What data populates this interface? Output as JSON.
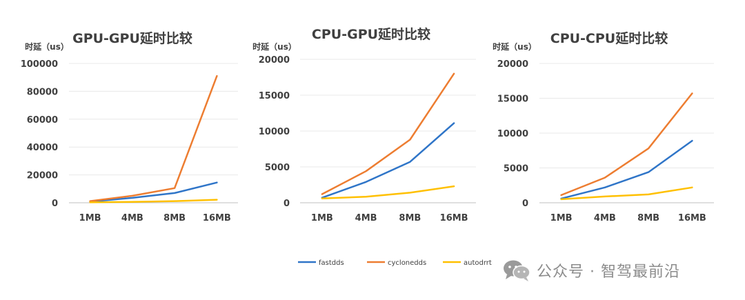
{
  "chart_data": [
    {
      "type": "line",
      "title": "GPU-GPU延时比较",
      "ylabel": "时延（us）",
      "categories": [
        "1MB",
        "4MB",
        "8MB",
        "16MB"
      ],
      "ylim": [
        0,
        100000
      ],
      "yticks": [
        0,
        20000,
        40000,
        60000,
        80000,
        100000
      ],
      "series": [
        {
          "name": "fastdds",
          "values": [
            800,
            3500,
            7000,
            14500
          ]
        },
        {
          "name": "cyclonedds",
          "values": [
            1200,
            5000,
            10500,
            91000
          ]
        },
        {
          "name": "autodrrt",
          "values": [
            300,
            600,
            1200,
            2200
          ]
        }
      ]
    },
    {
      "type": "line",
      "title": "CPU-GPU延时比较",
      "ylabel": "时延（us）",
      "categories": [
        "1MB",
        "4MB",
        "8MB",
        "16MB"
      ],
      "ylim": [
        0,
        20000
      ],
      "yticks": [
        0,
        5000,
        10000,
        15000,
        20000
      ],
      "series": [
        {
          "name": "fastdds",
          "values": [
            700,
            2900,
            5700,
            11100
          ]
        },
        {
          "name": "cyclonedds",
          "values": [
            1200,
            4400,
            8800,
            18000
          ]
        },
        {
          "name": "autodrrt",
          "values": [
            600,
            850,
            1400,
            2300
          ]
        }
      ]
    },
    {
      "type": "line",
      "title": "CPU-CPU延时比较",
      "ylabel": "时延（us）",
      "categories": [
        "1MB",
        "4MB",
        "8MB",
        "16MB"
      ],
      "ylim": [
        0,
        20000
      ],
      "yticks": [
        0,
        5000,
        10000,
        15000,
        20000
      ],
      "series": [
        {
          "name": "fastdds",
          "values": [
            600,
            2200,
            4400,
            8900
          ]
        },
        {
          "name": "cyclonedds",
          "values": [
            1100,
            3600,
            7800,
            15700
          ]
        },
        {
          "name": "autodrrt",
          "values": [
            500,
            900,
            1200,
            2200
          ]
        }
      ]
    }
  ],
  "legend": {
    "placement": "bottom",
    "items": [
      {
        "name": "fastdds",
        "color": "#2f75c8"
      },
      {
        "name": "cyclonedds",
        "color": "#ed7d31"
      },
      {
        "name": "autodrrt",
        "color": "#ffc000"
      }
    ]
  },
  "watermark": {
    "text": "公众号 · 智驾最前沿",
    "icon": "wechat-icon"
  }
}
